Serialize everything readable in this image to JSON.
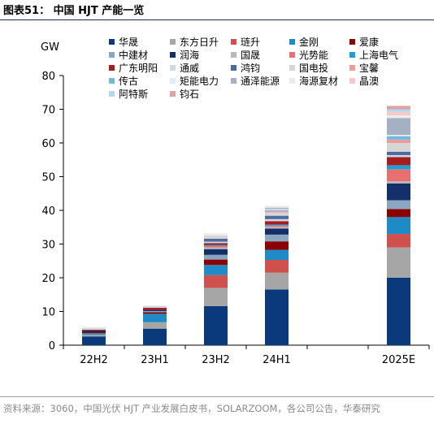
{
  "figure": {
    "title": "图表51： 中国 HJT 产能一览",
    "source": "资料来源：3060，中国光伏 HJT 产业发展白皮书，SOLARZOOM，各公司公告，华泰研究"
  },
  "chart_data": {
    "type": "bar",
    "stacked": true,
    "ylabel": "GW",
    "ylim": [
      0,
      80
    ],
    "yticks": [
      0,
      10,
      20,
      30,
      40,
      50,
      60,
      70,
      80
    ],
    "categories": [
      "22H2",
      "23H1",
      "23H2",
      "24H1",
      "",
      "2025E"
    ],
    "legend_position": "top-right",
    "grid": false,
    "series": [
      {
        "name": "华晟",
        "color": "#0b3a7c",
        "values": [
          2.6,
          4.9,
          11.6,
          16.5,
          null,
          20.0
        ]
      },
      {
        "name": "东方日升",
        "color": "#a6a6a6",
        "values": [
          0.5,
          1.9,
          5.4,
          5.0,
          null,
          9.0
        ]
      },
      {
        "name": "琏升",
        "color": "#d0504d",
        "values": [
          0.0,
          0.0,
          3.8,
          3.8,
          null,
          4.0
        ]
      },
      {
        "name": "金刚",
        "color": "#1f8bc6",
        "values": [
          0.5,
          2.5,
          3.0,
          3.0,
          null,
          5.0
        ]
      },
      {
        "name": "爱康",
        "color": "#8b0000",
        "values": [
          0.5,
          0.5,
          1.6,
          2.5,
          null,
          2.4
        ]
      },
      {
        "name": "中建材",
        "color": "#8ba6c1",
        "values": [
          0.0,
          0.3,
          1.4,
          2.0,
          null,
          2.6
        ]
      },
      {
        "name": "润海",
        "color": "#13306a",
        "values": [
          0.3,
          0.4,
          1.7,
          1.8,
          null,
          5.0
        ]
      },
      {
        "name": "国晟",
        "color": "#b8b8b8",
        "values": [
          0.0,
          0.0,
          0.5,
          0.5,
          null,
          0.6
        ]
      },
      {
        "name": "光势能",
        "color": "#e97070",
        "values": [
          0.0,
          0.0,
          0.4,
          0.4,
          null,
          3.6
        ]
      },
      {
        "name": "上海电气",
        "color": "#1a9fd6",
        "values": [
          0.0,
          0.0,
          0.3,
          0.3,
          null,
          1.2
        ]
      },
      {
        "name": "广东明阳",
        "color": "#a71d1d",
        "values": [
          0.2,
          0.6,
          0.6,
          1.0,
          null,
          2.4
        ]
      },
      {
        "name": "通威",
        "color": "#cfd9e3",
        "values": [
          0.2,
          0.2,
          0.4,
          0.6,
          null,
          0.6
        ]
      },
      {
        "name": "鸿钧",
        "color": "#4a6aa0",
        "values": [
          0.0,
          0.0,
          0.9,
          1.0,
          null,
          1.0
        ]
      },
      {
        "name": "国电投",
        "color": "#d6d6d6",
        "values": [
          0.4,
          0.4,
          1.0,
          1.0,
          null,
          2.6
        ]
      },
      {
        "name": "宝馨",
        "color": "#f19a9a",
        "values": [
          0.0,
          0.0,
          0.0,
          0.4,
          null,
          1.0
        ]
      },
      {
        "name": "传古",
        "color": "#72b8e0",
        "values": [
          0.0,
          0.0,
          0.0,
          0.3,
          null,
          1.0
        ]
      },
      {
        "name": "矩能电力",
        "color": "#deeef8",
        "values": [
          0.0,
          0.0,
          0.0,
          0.3,
          null,
          0.4
        ]
      },
      {
        "name": "通泽能源",
        "color": "#a5b0c3",
        "values": [
          0.0,
          0.0,
          0.0,
          0.4,
          null,
          5.0
        ]
      },
      {
        "name": "海源复材",
        "color": "#ececec",
        "values": [
          0.0,
          0.0,
          0.6,
          0.6,
          null,
          0.8
        ]
      },
      {
        "name": "晶澳",
        "color": "#f7c8c8",
        "values": [
          0.0,
          0.0,
          0.0,
          0.0,
          null,
          1.0
        ]
      },
      {
        "name": "阿特斯",
        "color": "#b7d7ee",
        "values": [
          0.0,
          0.0,
          0.0,
          0.0,
          null,
          0.8
        ]
      },
      {
        "name": "钧石",
        "color": "#dfa3a3",
        "values": [
          0.0,
          0.0,
          0.0,
          0.0,
          null,
          1.0
        ]
      }
    ]
  }
}
